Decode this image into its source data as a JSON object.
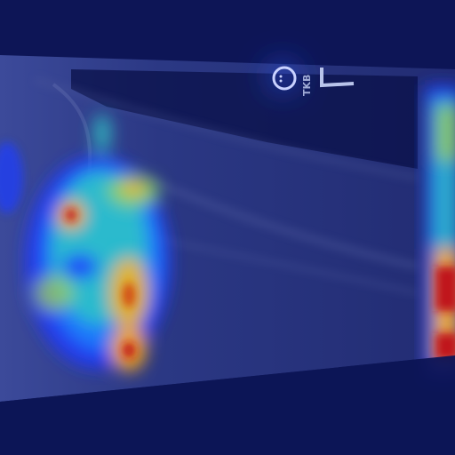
{
  "image": {
    "kind": "x-ray-heatmap-overlay",
    "colormap": "jet",
    "colors": {
      "background": "#0d1556",
      "plate": "#2a3680",
      "heat_low": "#1a3cff",
      "heat_mid": "#22c3c9",
      "heat_high": "#f2b21c",
      "heat_peak": "#c0151a"
    }
  },
  "marking": {
    "text": "TKB"
  }
}
